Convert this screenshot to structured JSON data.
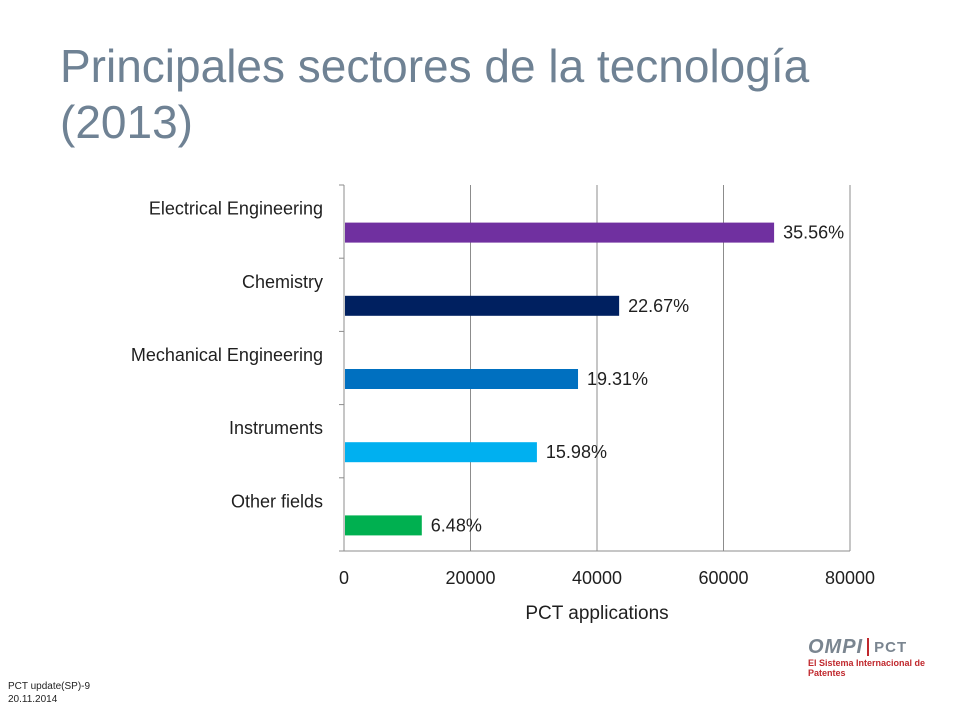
{
  "slide": {
    "title": "Principales sectores de la tecnología (2013)"
  },
  "footer": {
    "line1": "PCT update(SP)-9",
    "line2": "20.11.2014"
  },
  "brand": {
    "ompi": "OMPI",
    "pct": "PCT",
    "subtitle": "El Sistema Internacional de Patentes",
    "accent_color": "#c0282d"
  },
  "chart_data": {
    "type": "bar",
    "orientation": "horizontal",
    "categories": [
      "Electrical Engineering",
      "Chemistry",
      "Mechanical Engineering",
      "Instruments",
      "Other fields"
    ],
    "values": [
      68000,
      43500,
      37000,
      30500,
      12300
    ],
    "data_labels": [
      "35.56%",
      "22.67%",
      "19.31%",
      "15.98%",
      "6.48%"
    ],
    "colors": [
      "#7030a0",
      "#002060",
      "#0070c0",
      "#00b0f0",
      "#00b050"
    ],
    "xlabel": "PCT applications",
    "ylabel": "",
    "xlim": [
      0,
      80000
    ],
    "xticks": [
      "0",
      "20000",
      "40000",
      "60000",
      "80000"
    ],
    "xtick_values": [
      0,
      20000,
      40000,
      60000,
      80000
    ],
    "grid": "vertical",
    "legend": "none"
  }
}
